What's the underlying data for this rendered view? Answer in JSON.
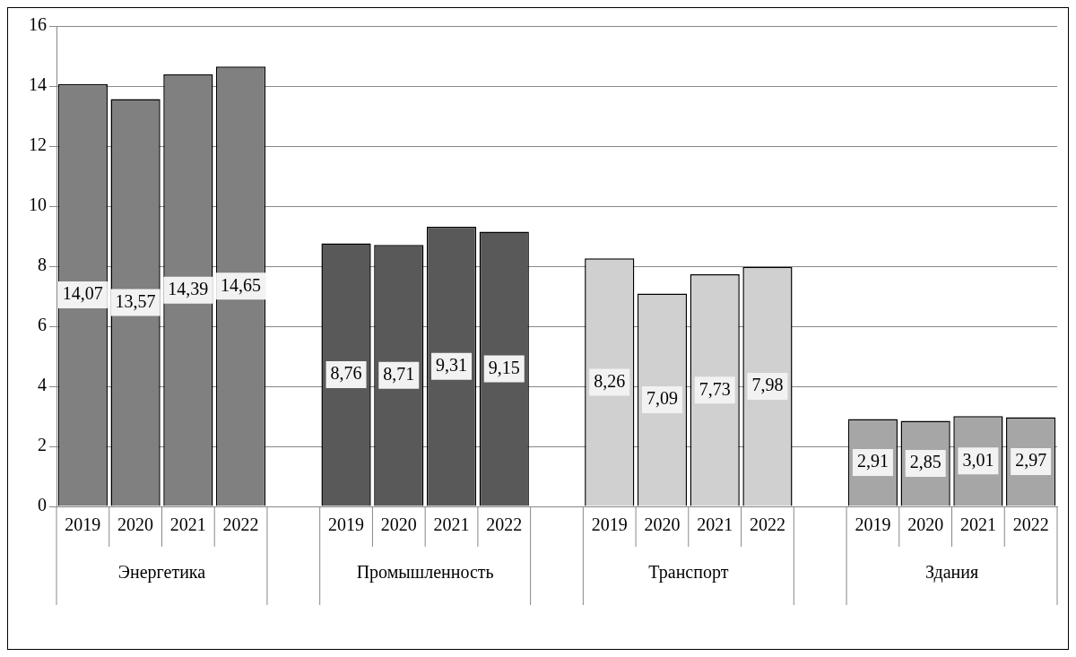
{
  "chart_data": {
    "type": "bar",
    "categories": [
      "2019",
      "2020",
      "2021",
      "2022",
      null,
      "2019",
      "2020",
      "2021",
      "2022",
      null,
      "2019",
      "2020",
      "2021",
      "2022",
      null,
      "2019",
      "2020",
      "2021",
      "2022"
    ],
    "series": [
      {
        "color": "#808080",
        "values": [
          14.07,
          13.57,
          14.39,
          14.65,
          null,
          null,
          null,
          null,
          null,
          null,
          null,
          null,
          null,
          null,
          null,
          null,
          null,
          null,
          null
        ],
        "value_labels": [
          "14,07",
          "13,57",
          "14,39",
          "14,65",
          null,
          null,
          null,
          null,
          null,
          null,
          null,
          null,
          null,
          null,
          null,
          null,
          null,
          null,
          null
        ]
      },
      {
        "color": "#595959",
        "values": [
          null,
          null,
          null,
          null,
          null,
          8.76,
          8.71,
          9.31,
          9.15,
          null,
          null,
          null,
          null,
          null,
          null,
          null,
          null,
          null,
          null
        ],
        "value_labels": [
          null,
          null,
          null,
          null,
          null,
          "8,76",
          "8,71",
          "9,31",
          "9,15",
          null,
          null,
          null,
          null,
          null,
          null,
          null,
          null,
          null,
          null
        ]
      },
      {
        "color": "#d0d0d0",
        "values": [
          null,
          null,
          null,
          null,
          null,
          null,
          null,
          null,
          null,
          null,
          8.26,
          7.09,
          7.73,
          7.98,
          null,
          null,
          null,
          null,
          null
        ],
        "value_labels": [
          null,
          null,
          null,
          null,
          null,
          null,
          null,
          null,
          null,
          null,
          "8,26",
          "7,09",
          "7,73",
          "7,98",
          null,
          null,
          null,
          null,
          null
        ]
      },
      {
        "color": "#a6a6a6",
        "values": [
          null,
          null,
          null,
          null,
          null,
          null,
          null,
          null,
          null,
          null,
          null,
          null,
          null,
          null,
          null,
          2.91,
          2.85,
          3.01,
          2.97
        ],
        "value_labels": [
          null,
          null,
          null,
          null,
          null,
          null,
          null,
          null,
          null,
          null,
          null,
          null,
          null,
          null,
          null,
          "2,91",
          "2,85",
          "3,01",
          "2,97"
        ]
      }
    ],
    "annotations": [
      "Энергетика",
      "Промышленность",
      "Транспорт",
      "Здания"
    ],
    "ylim": [
      0,
      16
    ],
    "yticks": [
      0,
      2,
      4,
      6,
      8,
      10,
      12,
      14,
      16
    ],
    "grid": "y"
  }
}
